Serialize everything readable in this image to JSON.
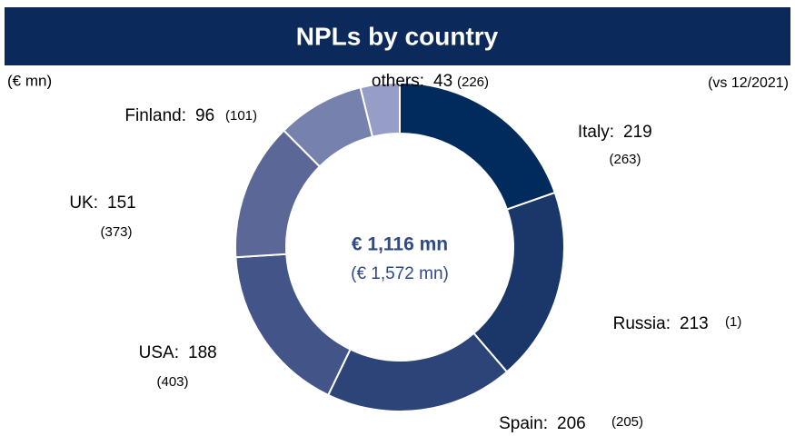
{
  "chart_data": {
    "type": "donut",
    "title": "NPLs by country",
    "unit_label": "(€ mn)",
    "comparison_label": "(vs 12/2021)",
    "center_label": "€ 1,116 mn",
    "center_sublabel": "(€ 1,572 mn)",
    "categories": [
      "Italy:",
      "Russia:",
      "Spain:",
      "USA:",
      "UK:",
      "Finland:",
      "others:"
    ],
    "values": [
      219,
      213,
      206,
      188,
      151,
      96,
      43
    ],
    "colors": [
      "#002b5c",
      "#1b3769",
      "#2d4478",
      "#435489",
      "#5b6897",
      "#7681ae",
      "#969dc6"
    ],
    "previous": {
      "values": [
        263,
        1,
        205,
        403,
        373,
        101,
        226
      ],
      "value_labels": [
        "(263)",
        "(1)",
        "(205)",
        "(403)",
        "(373)",
        "(101)",
        "(226)"
      ]
    }
  }
}
